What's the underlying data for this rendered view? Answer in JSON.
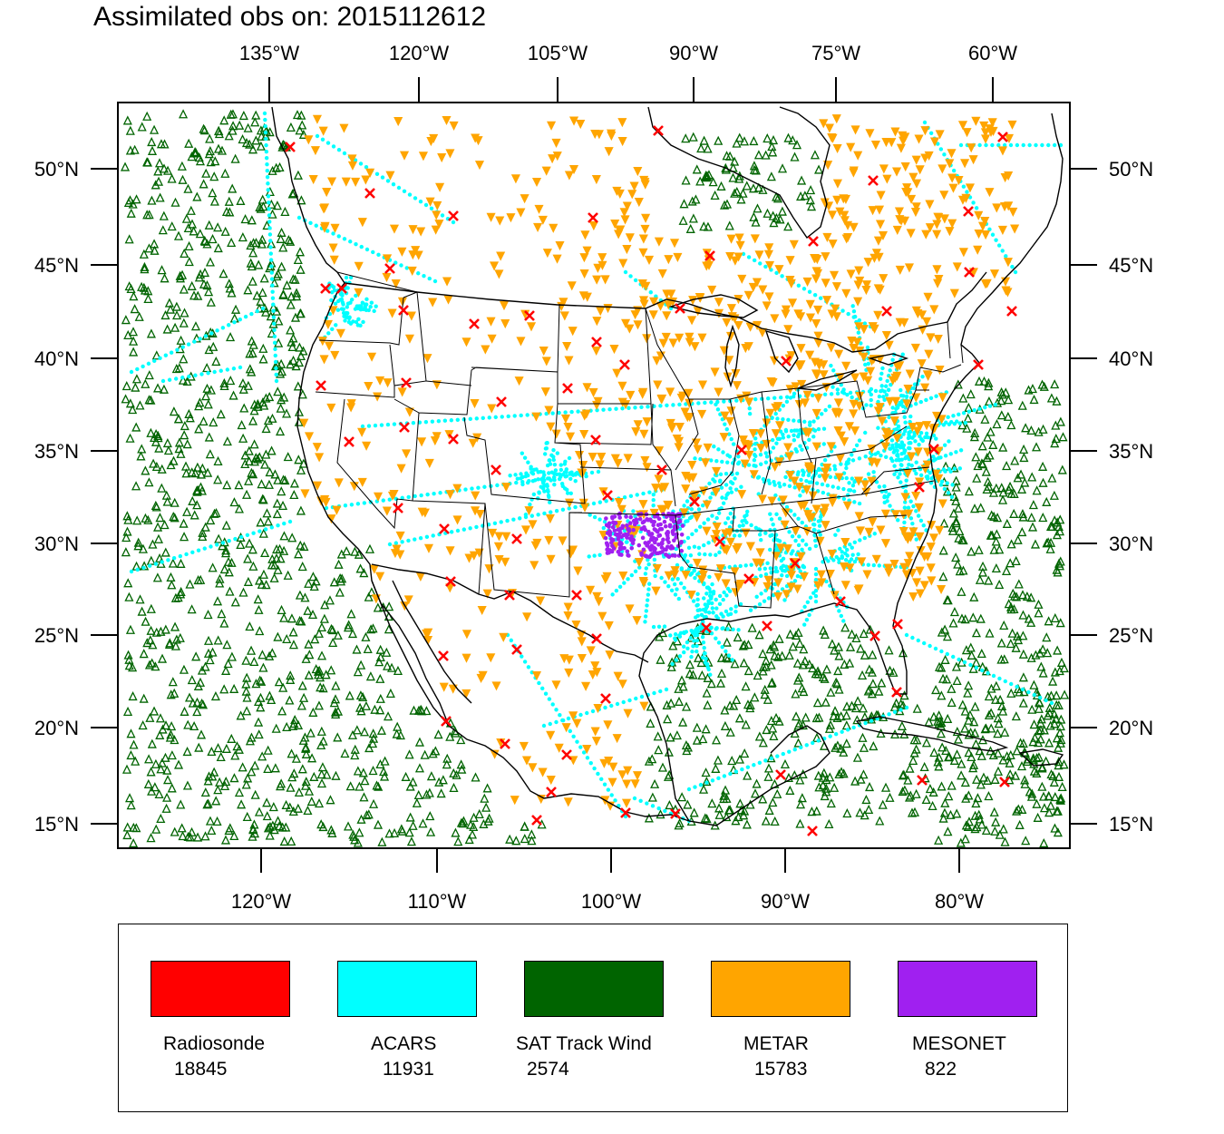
{
  "title": "Assimilated obs on: 2015112612",
  "map": {
    "projection": "lambert-conformal",
    "region": "North America / CONUS",
    "lat_range_deg": [
      14,
      53
    ],
    "lon_range_deg": [
      -128,
      -58
    ],
    "top_lon_labels": [
      "135°W",
      "120°W",
      "105°W",
      "90°W",
      "75°W",
      "60°W"
    ],
    "bottom_lon_labels": [
      "120°W",
      "110°W",
      "100°W",
      "90°W",
      "80°W"
    ],
    "lat_labels": [
      "50°N",
      "45°N",
      "40°N",
      "35°N",
      "30°N",
      "25°N",
      "20°N",
      "15°N"
    ]
  },
  "legend": [
    {
      "name": "Radiosonde",
      "count": "18845",
      "color": "#ff0000",
      "marker": "x-mark"
    },
    {
      "name": "ACARS",
      "count": "11931",
      "color": "#00ffff",
      "marker": "dot"
    },
    {
      "name": "SAT Track Wind",
      "count": "2574",
      "color": "#006400",
      "marker": "triangle-up"
    },
    {
      "name": "METAR",
      "count": "15783",
      "color": "#ffa500",
      "marker": "triangle-down"
    },
    {
      "name": "MESONET",
      "count": "822",
      "color": "#a020f0",
      "marker": "dot"
    }
  ]
}
